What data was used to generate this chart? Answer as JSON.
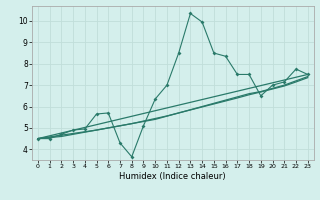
{
  "xlabel": "Humidex (Indice chaleur)",
  "background_color": "#d4efec",
  "grid_color": "#c0deda",
  "line_color": "#2a7a6a",
  "xlim": [
    -0.5,
    23.5
  ],
  "ylim": [
    3.5,
    10.7
  ],
  "xticks": [
    0,
    1,
    2,
    3,
    4,
    5,
    6,
    7,
    8,
    9,
    10,
    11,
    12,
    13,
    14,
    15,
    16,
    17,
    18,
    19,
    20,
    21,
    22,
    23
  ],
  "yticks": [
    4,
    5,
    6,
    7,
    8,
    9,
    10
  ],
  "series1_x": [
    0,
    1,
    2,
    3,
    4,
    5,
    6,
    7,
    8,
    9,
    10,
    11,
    12,
    13,
    14,
    15,
    16,
    17,
    18,
    19,
    20,
    21,
    22,
    23
  ],
  "series1_y": [
    4.5,
    4.5,
    4.7,
    4.9,
    4.95,
    5.65,
    5.7,
    4.3,
    3.65,
    5.1,
    6.35,
    7.0,
    8.5,
    10.35,
    9.95,
    8.5,
    8.35,
    7.5,
    7.5,
    6.5,
    7.0,
    7.15,
    7.75,
    7.5
  ],
  "series2_x": [
    0,
    23
  ],
  "series2_y": [
    4.5,
    7.5
  ],
  "series3_x": [
    0,
    1,
    2,
    3,
    4,
    5,
    6,
    7,
    8,
    9,
    10,
    11,
    12,
    13,
    14,
    15,
    16,
    17,
    18,
    19,
    20,
    21,
    22,
    23
  ],
  "series3_y": [
    4.5,
    4.55,
    4.6,
    4.7,
    4.8,
    4.9,
    5.0,
    5.1,
    5.2,
    5.3,
    5.4,
    5.55,
    5.7,
    5.85,
    6.0,
    6.15,
    6.3,
    6.45,
    6.6,
    6.7,
    6.85,
    7.0,
    7.2,
    7.4
  ],
  "series4_x": [
    0,
    1,
    2,
    3,
    4,
    5,
    6,
    7,
    8,
    9,
    10,
    11,
    12,
    13,
    14,
    15,
    16,
    17,
    18,
    19,
    20,
    21,
    22,
    23
  ],
  "series4_y": [
    4.5,
    4.58,
    4.66,
    4.74,
    4.82,
    4.9,
    5.0,
    5.1,
    5.2,
    5.32,
    5.44,
    5.56,
    5.7,
    5.84,
    5.98,
    6.12,
    6.26,
    6.4,
    6.55,
    6.68,
    6.82,
    6.96,
    7.15,
    7.35
  ]
}
